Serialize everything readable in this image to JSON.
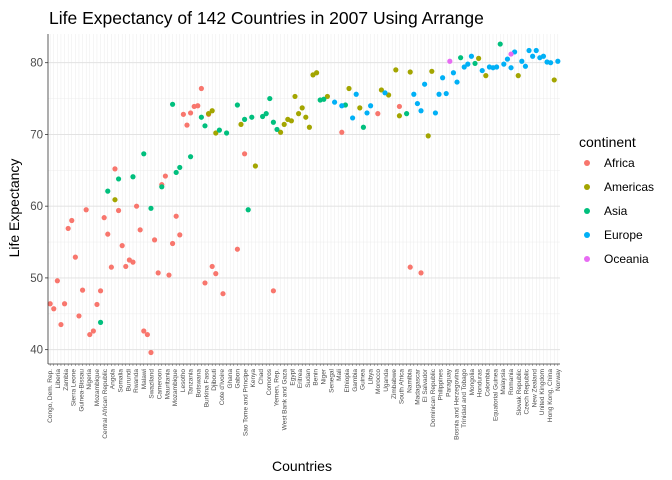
{
  "chart_data": {
    "type": "scatter",
    "title": "Life Expectancy of 142 Countries in 2007 Using Arrange",
    "xlabel": "Countries",
    "ylabel": "Life Expectancy",
    "ylim": [
      38,
      84
    ],
    "yticks": [
      40,
      50,
      60,
      70,
      80
    ],
    "grid": true,
    "legend": {
      "title": "continent",
      "position": "right",
      "entries": [
        {
          "name": "Africa",
          "color": "#F8766D"
        },
        {
          "name": "Americas",
          "color": "#A3A500"
        },
        {
          "name": "Asia",
          "color": "#00BF7D"
        },
        {
          "name": "Europe",
          "color": "#00B0F6"
        },
        {
          "name": "Oceania",
          "color": "#E76BF3"
        }
      ]
    },
    "x_tick_labels": [
      "Congo, Dem. Rep.",
      "Liberia",
      "Zambia",
      "Sierra Leone",
      "Guinea-Bissau",
      "Nigeria",
      "Mozambique",
      "Central African Republic",
      "Angola",
      "Somalia",
      "Burundi",
      "Rwanda",
      "Malawi",
      "Swaziland",
      "Cameroon",
      "Mauritania",
      "Mozambique",
      "Lesotho",
      "Tanzania",
      "Botswana",
      "Burkina Faso",
      "Djibouti",
      "Cote d'Ivoire",
      "Ghana",
      "Gabon",
      "Sao Tome and Principe",
      "Kenya",
      "Chad",
      "Comoros",
      "Yemen, Rep.",
      "West Bank and Gaza",
      "Egypt",
      "Eritrea",
      "Sudan",
      "Benin",
      "Niger",
      "Senegal",
      "Mali",
      "Ethiopia",
      "Gambia",
      "Guinea",
      "Libya",
      "Morocco",
      "Uganda",
      "Zimbabwe",
      "South Africa",
      "Namibia",
      "Madagascar",
      "El Salvador",
      "Dominican Republic",
      "Philippines",
      "Paraguay",
      "Bosnia and Herzegovina",
      "Trinidad and Tobago",
      "Mongolia",
      "Honduras",
      "Colombia",
      "Equatorial Guinea",
      "Malaysia",
      "Romania",
      "Slovak Republic",
      "Czech Republic",
      "New Zealand",
      "United Kingdom",
      "Hong Kong, China",
      "Norway"
    ],
    "series": [
      {
        "name": "Africa",
        "color": "#F8766D",
        "x": [
          1,
          2,
          3,
          4,
          5,
          6,
          7,
          8,
          9,
          10,
          11,
          12,
          13,
          14,
          15,
          16,
          17,
          18,
          19,
          20,
          21,
          22,
          23,
          24,
          25,
          26,
          27,
          28,
          29,
          30,
          31,
          32,
          33,
          34,
          35,
          36,
          37,
          38,
          39,
          40,
          41,
          42,
          43,
          44,
          45,
          46,
          47,
          49,
          53,
          55,
          63,
          82,
          92,
          98,
          101,
          104
        ],
        "y": [
          46.4,
          45.7,
          49.6,
          43.5,
          46.4,
          56.9,
          58.0,
          52.9,
          44.7,
          48.3,
          59.5,
          42.1,
          42.6,
          46.3,
          48.2,
          58.4,
          56.1,
          51.5,
          65.2,
          59.4,
          54.5,
          51.6,
          52.5,
          52.2,
          60.0,
          56.7,
          42.6,
          42.1,
          39.6,
          55.3,
          50.7,
          63.0,
          64.2,
          50.4,
          54.8,
          58.6,
          56.0,
          72.8,
          71.3,
          73.0,
          73.9,
          74.0,
          76.4,
          49.3,
          72.8,
          51.6,
          50.6,
          47.8,
          54.0,
          67.3,
          48.2,
          70.3,
          72.9,
          73.9,
          51.5,
          50.7
        ]
      },
      {
        "name": "Americas",
        "color": "#A3A500",
        "x": [
          19,
          45,
          46,
          47,
          54,
          58,
          65,
          66,
          67,
          68,
          69,
          70,
          71,
          72,
          73,
          74,
          75,
          78,
          84,
          87,
          93,
          95,
          97,
          98,
          101,
          106,
          107,
          120,
          122,
          131,
          141
        ],
        "y": [
          60.9,
          72.9,
          73.3,
          70.2,
          71.4,
          65.6,
          70.3,
          71.4,
          72.1,
          71.9,
          75.3,
          72.9,
          73.7,
          72.4,
          71.0,
          78.3,
          78.6,
          75.3,
          76.4,
          73.7,
          76.2,
          75.5,
          79.0,
          72.6,
          78.7,
          69.8,
          78.8,
          80.6,
          78.2,
          78.2,
          77.6
        ]
      },
      {
        "name": "Asia",
        "color": "#00BF7D",
        "x": [
          15,
          17,
          20,
          24,
          27,
          29,
          32,
          35,
          36,
          37,
          40,
          43,
          44,
          48,
          50,
          53,
          55,
          56,
          57,
          60,
          61,
          62,
          63,
          64,
          76,
          77,
          83,
          88,
          100,
          115,
          119,
          126
        ],
        "y": [
          43.8,
          62.1,
          63.8,
          64.1,
          67.3,
          59.7,
          62.7,
          74.2,
          64.7,
          65.4,
          66.9,
          72.4,
          71.2,
          70.6,
          70.2,
          74.1,
          72.1,
          59.5,
          72.4,
          72.5,
          72.9,
          75.0,
          71.7,
          70.7,
          74.8,
          74.9,
          74.1,
          71.0,
          72.9,
          80.7,
          79.9,
          82.6
        ]
      },
      {
        "name": "Europe",
        "color": "#00B0F6",
        "x": [
          80,
          82,
          85,
          86,
          89,
          90,
          94,
          102,
          103,
          104,
          105,
          108,
          109,
          110,
          111,
          113,
          114,
          116,
          117,
          118,
          121,
          123,
          124,
          125,
          127,
          128,
          129,
          130,
          132,
          133,
          134,
          135,
          136,
          137,
          138,
          139,
          140,
          142
        ],
        "y": [
          74.5,
          74.0,
          72.3,
          75.6,
          73.0,
          74.0,
          75.8,
          75.6,
          74.3,
          73.3,
          77.0,
          73.0,
          75.6,
          77.9,
          75.7,
          78.6,
          77.3,
          79.4,
          79.8,
          80.9,
          78.9,
          79.4,
          79.3,
          79.4,
          79.8,
          80.5,
          79.3,
          81.5,
          80.2,
          79.5,
          81.7,
          80.9,
          81.7,
          80.7,
          80.9,
          80.1,
          80.0,
          80.2
        ]
      },
      {
        "name": "Oceania",
        "color": "#E76BF3",
        "x": [
          112,
          129
        ],
        "y": [
          80.2,
          81.2
        ]
      }
    ]
  }
}
